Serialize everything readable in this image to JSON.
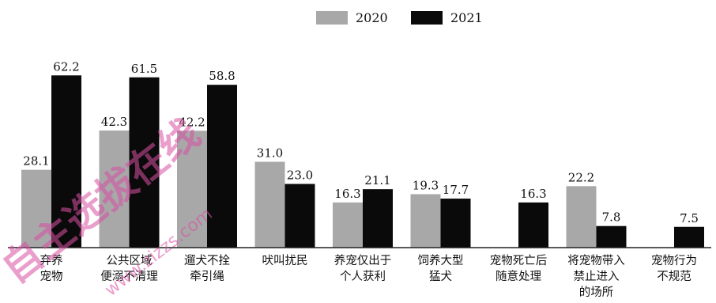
{
  "chart_data": {
    "type": "bar",
    "categories": [
      [
        "弃养",
        "宠物"
      ],
      [
        "公共区域",
        "便溺不清理"
      ],
      [
        "遛犬不拴",
        "牵引绳"
      ],
      [
        "吠叫扰民"
      ],
      [
        "养宠仅出于",
        "个人获利"
      ],
      [
        "饲养大型",
        "猛犬"
      ],
      [
        "宠物死亡后",
        "随意处理"
      ],
      [
        "将宠物带入",
        "禁止进入",
        "的场所"
      ],
      [
        "宠物行为",
        "不规范"
      ]
    ],
    "series": [
      {
        "name": "2020",
        "color": "#a8a8a8",
        "values": [
          28.1,
          42.3,
          42.2,
          31.0,
          16.3,
          19.3,
          null,
          22.2,
          null
        ],
        "labels": [
          "28.1",
          "42.3",
          "42.2",
          "31.0",
          "16.3",
          "19.3",
          "",
          "22.2",
          ""
        ]
      },
      {
        "name": "2021",
        "color": "#0a0a0a",
        "values": [
          62.2,
          61.5,
          58.8,
          23.0,
          21.1,
          17.7,
          16.3,
          7.8,
          7.5
        ],
        "labels": [
          "62.2",
          "61.5",
          "58.8",
          "23.0",
          "21.1",
          "17.7",
          "16.3",
          "7.8",
          "7.5"
        ]
      }
    ],
    "ylim": [
      0,
      70
    ],
    "grid": false,
    "legend": "top-center"
  },
  "watermark": {
    "text": "自主选拔在线",
    "url": "www.zizzs.com",
    "color": "#d94fa3"
  }
}
